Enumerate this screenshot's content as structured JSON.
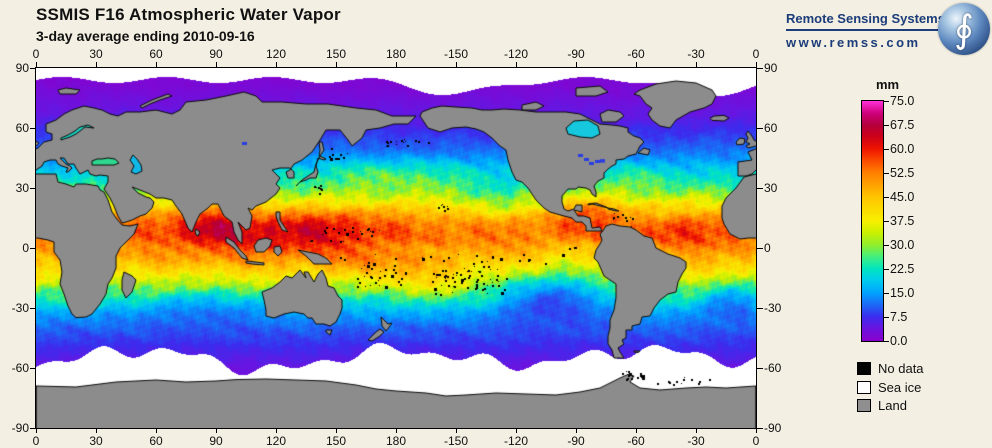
{
  "header": {
    "title": "SSMIS F16 Atmospheric Water Vapor",
    "subtitle": "3-day average ending 2010-09-16"
  },
  "branding": {
    "name": "Remote Sensing Systems",
    "url": "www.remss.com",
    "globe_symbol": "∮",
    "navy": "#1c3d7a"
  },
  "axes": {
    "lon_tick_labels": [
      "0",
      "30",
      "60",
      "90",
      "120",
      "150",
      "180",
      "-150",
      "-120",
      "-90",
      "-60",
      "-30",
      "0"
    ],
    "lat_tick_labels": [
      "90",
      "60",
      "30",
      "0",
      "-30",
      "-60",
      "-90"
    ]
  },
  "colorbar": {
    "unit": "mm",
    "tick_labels": [
      "75.0",
      "67.5",
      "60.0",
      "52.5",
      "45.0",
      "37.5",
      "30.0",
      "22.5",
      "15.0",
      "7.5",
      "0.0"
    ],
    "min_mm": 0,
    "max_mm": 75
  },
  "legend": [
    {
      "label": "No data",
      "color": "#000000"
    },
    {
      "label": "Sea ice",
      "color": "#ffffff"
    },
    {
      "label": "Land",
      "color": "#8f8f8f"
    }
  ],
  "colors": {
    "background": "#f3efe2",
    "land": "#8c8c8c",
    "coast_outline": "#0a0a0a",
    "sea_ice": "#ffffff",
    "no_data": "#000000",
    "map_frame": "#000000"
  },
  "chart_data": {
    "type": "heatmap",
    "title": "SSMIS F16 Atmospheric Water Vapor",
    "subtitle": "3-day average ending 2010-09-16",
    "variable": "columnar atmospheric water vapor",
    "units": "mm",
    "projection": "equirectangular global map, longitude 0→360 east (dateline-centered), latitude +90 top to -90 bottom",
    "xlabel": "longitude (degrees)",
    "ylabel": "latitude (degrees)",
    "x_ticks_deg": [
      0,
      30,
      60,
      90,
      120,
      150,
      180,
      -150,
      -120,
      -90,
      -60,
      -30,
      0
    ],
    "y_ticks_deg": [
      90,
      60,
      30,
      0,
      -30,
      -60,
      -90
    ],
    "scale_range_mm": [
      0,
      75
    ],
    "scale_ticks_mm": [
      75.0,
      67.5,
      60.0,
      52.5,
      45.0,
      37.5,
      30.0,
      22.5,
      15.0,
      7.5,
      0.0
    ],
    "legend_classes": [
      "No data",
      "Sea ice",
      "Land"
    ],
    "colormap": [
      {
        "v": 0,
        "c": "#8a00cc"
      },
      {
        "v": 4,
        "c": "#6a14e0"
      },
      {
        "v": 7.5,
        "c": "#3c2cee"
      },
      {
        "v": 11,
        "c": "#1e64f5"
      },
      {
        "v": 15,
        "c": "#00a2ff"
      },
      {
        "v": 19,
        "c": "#00ccee"
      },
      {
        "v": 22.5,
        "c": "#00e4c0"
      },
      {
        "v": 26,
        "c": "#3cee84"
      },
      {
        "v": 30,
        "c": "#90ee2c"
      },
      {
        "v": 34,
        "c": "#ccf000"
      },
      {
        "v": 37.5,
        "c": "#f8f000"
      },
      {
        "v": 45,
        "c": "#ffc400"
      },
      {
        "v": 52.5,
        "c": "#ff8000"
      },
      {
        "v": 57,
        "c": "#fa4200"
      },
      {
        "v": 60,
        "c": "#ee1400"
      },
      {
        "v": 64,
        "c": "#cc0018"
      },
      {
        "v": 67.5,
        "c": "#b4003c"
      },
      {
        "v": 71,
        "c": "#cc0078"
      },
      {
        "v": 75,
        "c": "#ff30d8"
      }
    ],
    "zonal_mean_mm": [
      {
        "lat": 75,
        "mm": 3
      },
      {
        "lat": 60,
        "mm": 7
      },
      {
        "lat": 50,
        "mm": 11
      },
      {
        "lat": 40,
        "mm": 18
      },
      {
        "lat": 30,
        "mm": 27
      },
      {
        "lat": 20,
        "mm": 42
      },
      {
        "lat": 10,
        "mm": 52
      },
      {
        "lat": 5,
        "mm": 52
      },
      {
        "lat": 0,
        "mm": 49
      },
      {
        "lat": -10,
        "mm": 42
      },
      {
        "lat": -20,
        "mm": 30
      },
      {
        "lat": -30,
        "mm": 18
      },
      {
        "lat": -40,
        "mm": 11
      },
      {
        "lat": -50,
        "mm": 7
      },
      {
        "lat": -60,
        "mm": 4
      }
    ],
    "notable_features": [
      "Deep red (55-70 mm) over Bay of Bengal, Arabian Sea and the Indo-Pacific warm pool",
      "Red ITCZ band near 5-10N across the Pacific and Atlantic",
      "Orange/red Caribbean and Gulf of Mexico",
      "Dry purple/blue subtropical southeast Pacific and South Atlantic",
      "Purple polar oceans; white sea-ice band around Antarctica and Arctic cap",
      "Black no-data speckles over South Pacific island clusters",
      "Gray land, white sea ice, black no-data per legend"
    ]
  }
}
